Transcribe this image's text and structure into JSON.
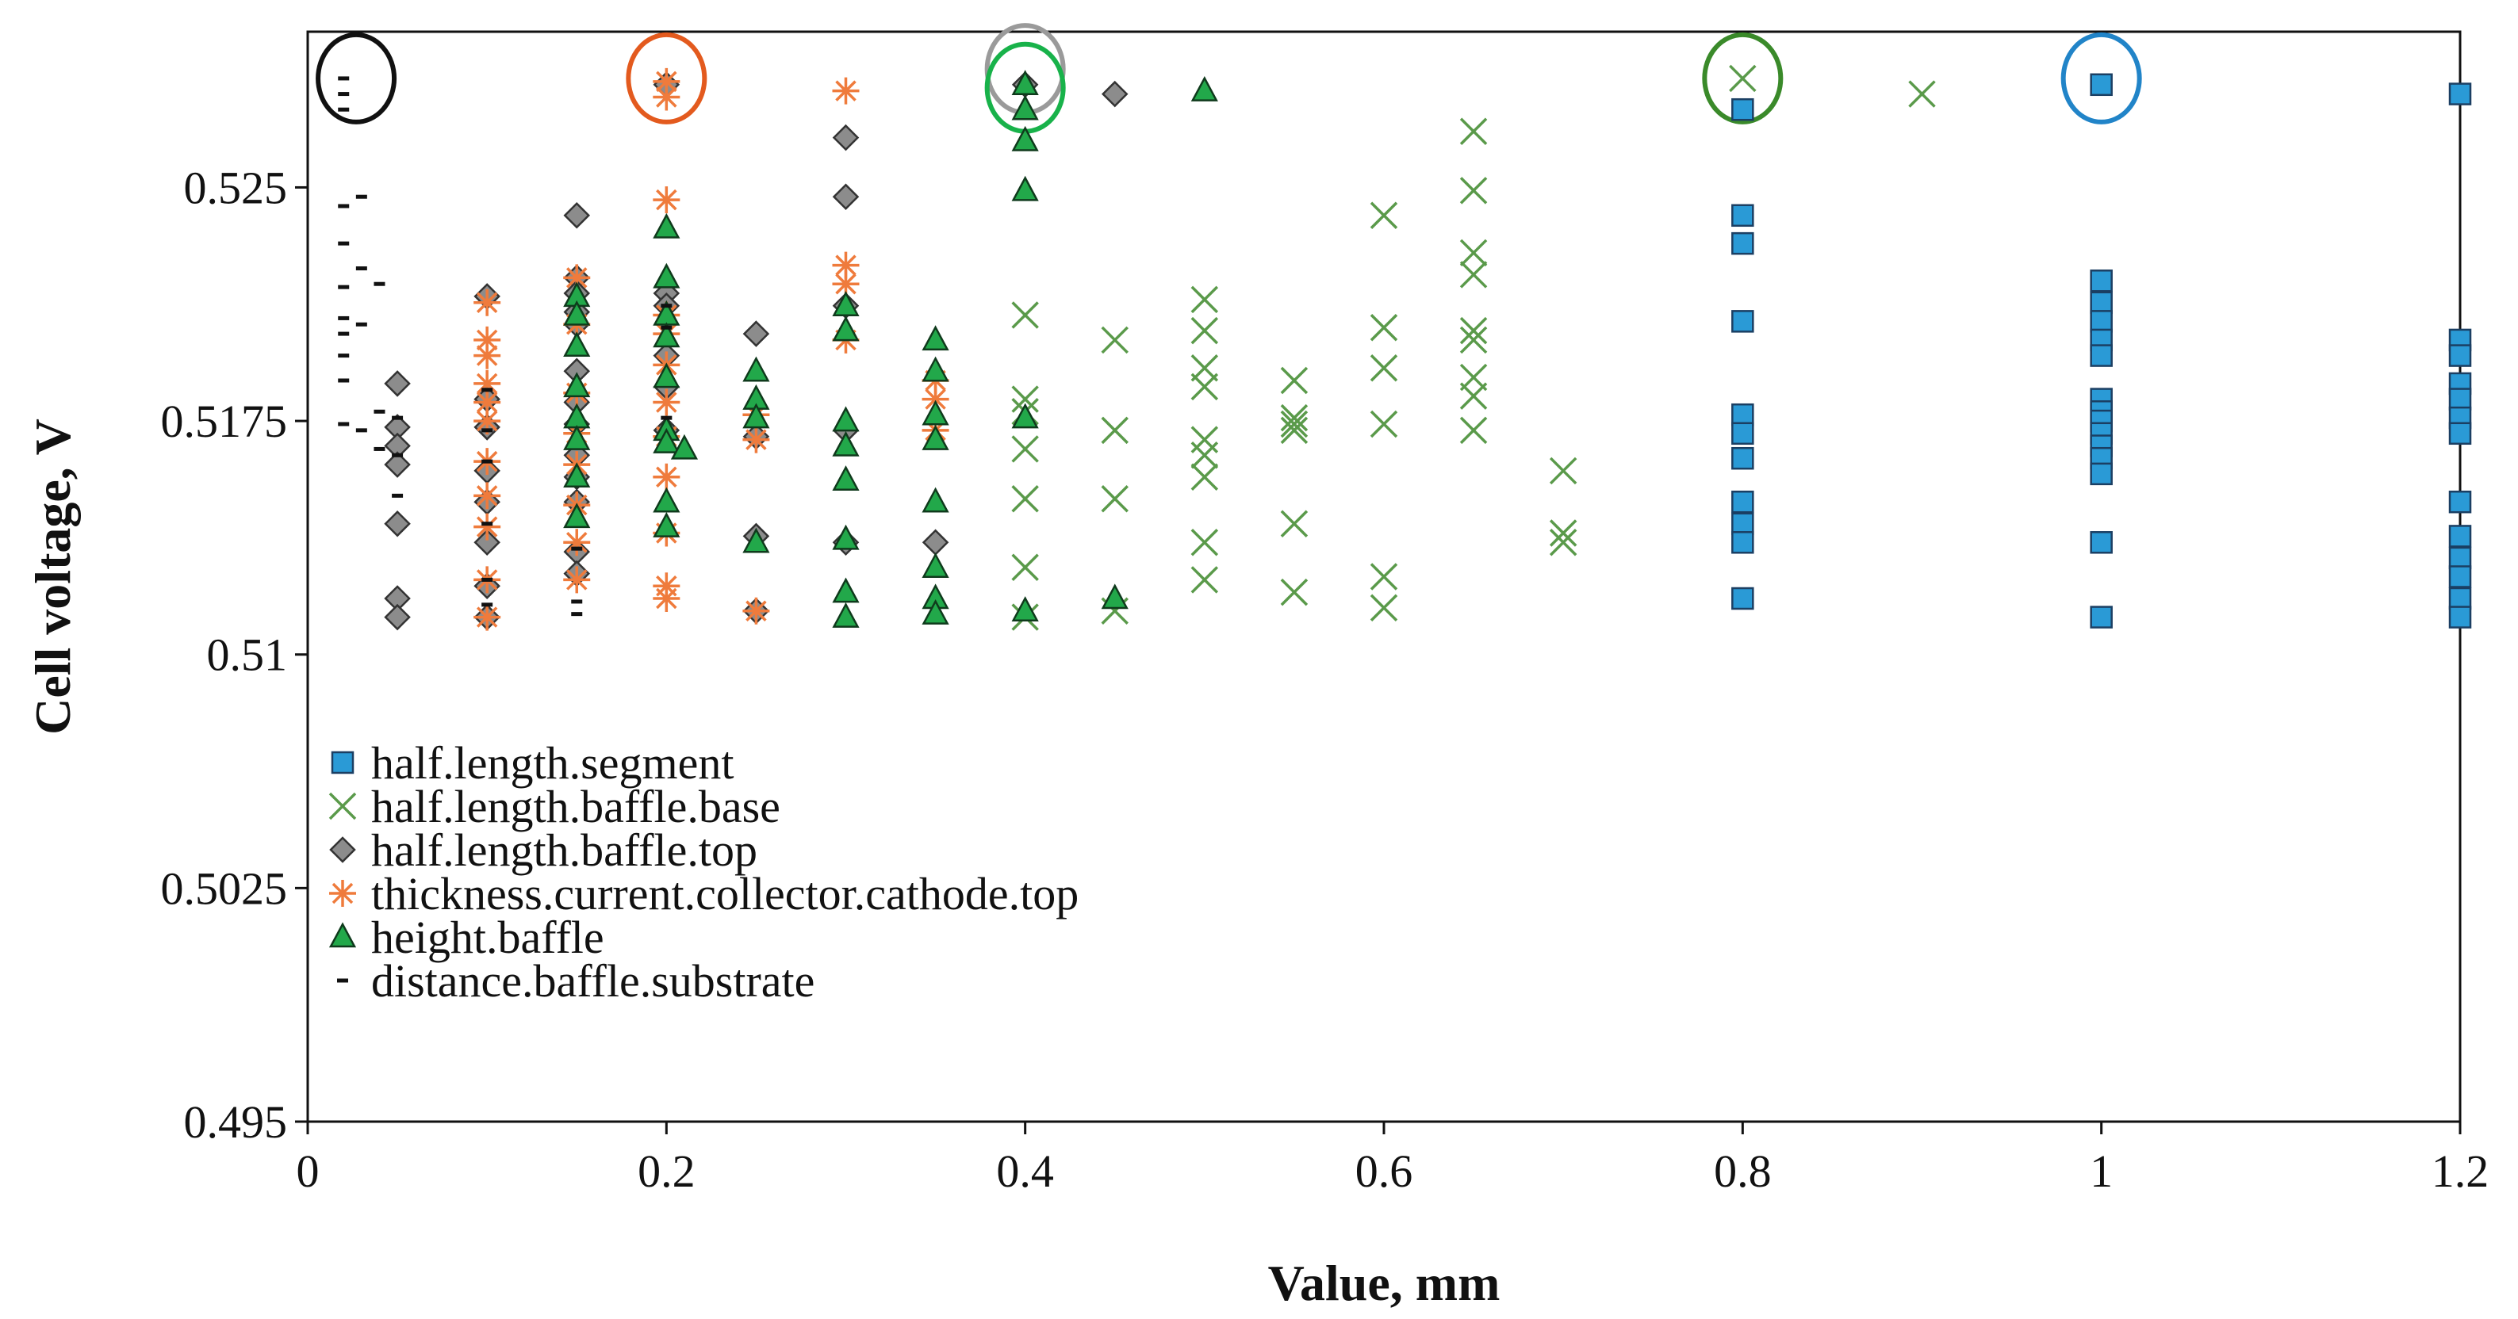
{
  "chart_data": {
    "type": "scatter",
    "title": "",
    "xlabel": "Value, mm",
    "ylabel": "Cell voltage, V",
    "xlim": [
      0,
      1.2
    ],
    "ylim": [
      0.495,
      0.53
    ],
    "xticks": [
      0,
      0.2,
      0.4,
      0.6,
      0.8,
      1,
      1.2
    ],
    "xtick_labels": [
      "0",
      "0.2",
      "0.4",
      "0.6",
      "0.8",
      "1",
      "1.2"
    ],
    "yticks": [
      0.495,
      0.5025,
      0.51,
      0.5175,
      0.525
    ],
    "ytick_labels": [
      "0.495",
      "0.5025",
      "0.51",
      "0.5175",
      "0.525"
    ],
    "grid": false,
    "legend_position": "bottom-left",
    "series": [
      {
        "name": "half.length.segment",
        "marker": "square",
        "color": "#2a9ad6",
        "points": [
          [
            0.8,
            0.5275
          ],
          [
            0.8,
            0.5241
          ],
          [
            0.8,
            0.5232
          ],
          [
            0.8,
            0.5207
          ],
          [
            0.8,
            0.5177
          ],
          [
            0.8,
            0.5171
          ],
          [
            0.8,
            0.5163
          ],
          [
            0.8,
            0.5149
          ],
          [
            0.8,
            0.5142
          ],
          [
            0.8,
            0.5136
          ],
          [
            0.8,
            0.5118
          ],
          [
            1,
            0.5283
          ],
          [
            1,
            0.522
          ],
          [
            1,
            0.5213
          ],
          [
            1,
            0.5207
          ],
          [
            1,
            0.5201
          ],
          [
            1,
            0.5196
          ],
          [
            1,
            0.5182
          ],
          [
            1,
            0.5178
          ],
          [
            1,
            0.5175
          ],
          [
            1,
            0.5171
          ],
          [
            1,
            0.5167
          ],
          [
            1,
            0.5163
          ],
          [
            1,
            0.5158
          ],
          [
            1,
            0.5136
          ],
          [
            1,
            0.5112
          ],
          [
            1.2,
            0.528
          ],
          [
            1.2,
            0.5201
          ],
          [
            1.2,
            0.5196
          ],
          [
            1.2,
            0.5187
          ],
          [
            1.2,
            0.5182
          ],
          [
            1.2,
            0.5176
          ],
          [
            1.2,
            0.5171
          ],
          [
            1.2,
            0.5149
          ],
          [
            1.2,
            0.5138
          ],
          [
            1.2,
            0.5131
          ],
          [
            1.2,
            0.5125
          ],
          [
            1.2,
            0.5118
          ],
          [
            1.2,
            0.5112
          ]
        ]
      },
      {
        "name": "half.length.baffle.base",
        "marker": "x",
        "color": "#5a9a4a",
        "points": [
          [
            0.4,
            0.5209
          ],
          [
            0.4,
            0.5182
          ],
          [
            0.4,
            0.5178
          ],
          [
            0.4,
            0.5166
          ],
          [
            0.4,
            0.515
          ],
          [
            0.4,
            0.5128
          ],
          [
            0.4,
            0.5112
          ],
          [
            0.45,
            0.5201
          ],
          [
            0.45,
            0.5172
          ],
          [
            0.45,
            0.515
          ],
          [
            0.45,
            0.5114
          ],
          [
            0.5,
            0.5214
          ],
          [
            0.5,
            0.5204
          ],
          [
            0.5,
            0.5192
          ],
          [
            0.5,
            0.5186
          ],
          [
            0.5,
            0.5169
          ],
          [
            0.5,
            0.5164
          ],
          [
            0.5,
            0.5157
          ],
          [
            0.5,
            0.5136
          ],
          [
            0.5,
            0.5124
          ],
          [
            0.55,
            0.5188
          ],
          [
            0.55,
            0.5176
          ],
          [
            0.55,
            0.5174
          ],
          [
            0.55,
            0.5172
          ],
          [
            0.55,
            0.5142
          ],
          [
            0.55,
            0.512
          ],
          [
            0.6,
            0.5241
          ],
          [
            0.6,
            0.5205
          ],
          [
            0.6,
            0.5192
          ],
          [
            0.6,
            0.5174
          ],
          [
            0.6,
            0.5125
          ],
          [
            0.6,
            0.5115
          ],
          [
            0.65,
            0.5268
          ],
          [
            0.65,
            0.5249
          ],
          [
            0.65,
            0.5229
          ],
          [
            0.65,
            0.5222
          ],
          [
            0.65,
            0.5204
          ],
          [
            0.65,
            0.5201
          ],
          [
            0.65,
            0.5189
          ],
          [
            0.65,
            0.5183
          ],
          [
            0.65,
            0.5172
          ],
          [
            0.7,
            0.5159
          ],
          [
            0.7,
            0.5139
          ],
          [
            0.7,
            0.5136
          ],
          [
            0.8,
            0.5285
          ],
          [
            0.9,
            0.528
          ]
        ]
      },
      {
        "name": "half.length.baffle.top",
        "marker": "diamond",
        "color": "#8c8c8c",
        "points": [
          [
            0.05,
            0.5187
          ],
          [
            0.05,
            0.5173
          ],
          [
            0.05,
            0.5167
          ],
          [
            0.05,
            0.5161
          ],
          [
            0.05,
            0.5142
          ],
          [
            0.05,
            0.5118
          ],
          [
            0.05,
            0.5112
          ],
          [
            0.1,
            0.5215
          ],
          [
            0.1,
            0.5182
          ],
          [
            0.1,
            0.5173
          ],
          [
            0.1,
            0.5159
          ],
          [
            0.1,
            0.5149
          ],
          [
            0.1,
            0.5136
          ],
          [
            0.1,
            0.5122
          ],
          [
            0.1,
            0.5112
          ],
          [
            0.15,
            0.5241
          ],
          [
            0.15,
            0.5221
          ],
          [
            0.15,
            0.5216
          ],
          [
            0.15,
            0.521
          ],
          [
            0.15,
            0.5206
          ],
          [
            0.15,
            0.5191
          ],
          [
            0.15,
            0.5181
          ],
          [
            0.15,
            0.5174
          ],
          [
            0.15,
            0.5164
          ],
          [
            0.15,
            0.5157
          ],
          [
            0.15,
            0.5149
          ],
          [
            0.15,
            0.5133
          ],
          [
            0.15,
            0.5126
          ],
          [
            0.2,
            0.5283
          ],
          [
            0.2,
            0.5216
          ],
          [
            0.2,
            0.5212
          ],
          [
            0.2,
            0.5196
          ],
          [
            0.2,
            0.5186
          ],
          [
            0.2,
            0.5172
          ],
          [
            0.25,
            0.5203
          ],
          [
            0.25,
            0.517
          ],
          [
            0.25,
            0.5138
          ],
          [
            0.25,
            0.5114
          ],
          [
            0.3,
            0.5266
          ],
          [
            0.3,
            0.5247
          ],
          [
            0.3,
            0.5212
          ],
          [
            0.3,
            0.5172
          ],
          [
            0.3,
            0.5136
          ],
          [
            0.35,
            0.5136
          ],
          [
            0.4,
            0.5283
          ],
          [
            0.45,
            0.528
          ]
        ]
      },
      {
        "name": "thickness.current.collector.cathode.top",
        "marker": "asterisk",
        "color": "#ef7b3c",
        "points": [
          [
            0.1,
            0.5213
          ],
          [
            0.1,
            0.5201
          ],
          [
            0.1,
            0.5196
          ],
          [
            0.1,
            0.5187
          ],
          [
            0.1,
            0.5181
          ],
          [
            0.1,
            0.5175
          ],
          [
            0.1,
            0.5162
          ],
          [
            0.1,
            0.5151
          ],
          [
            0.1,
            0.5141
          ],
          [
            0.1,
            0.5124
          ],
          [
            0.1,
            0.5112
          ],
          [
            0.15,
            0.5221
          ],
          [
            0.15,
            0.5206
          ],
          [
            0.15,
            0.5184
          ],
          [
            0.15,
            0.5171
          ],
          [
            0.15,
            0.5161
          ],
          [
            0.15,
            0.5148
          ],
          [
            0.15,
            0.5136
          ],
          [
            0.15,
            0.5124
          ],
          [
            0.2,
            0.5284
          ],
          [
            0.2,
            0.5279
          ],
          [
            0.2,
            0.5246
          ],
          [
            0.2,
            0.5209
          ],
          [
            0.2,
            0.5203
          ],
          [
            0.2,
            0.5193
          ],
          [
            0.2,
            0.5181
          ],
          [
            0.2,
            0.517
          ],
          [
            0.2,
            0.5157
          ],
          [
            0.2,
            0.5139
          ],
          [
            0.2,
            0.5122
          ],
          [
            0.2,
            0.5118
          ],
          [
            0.25,
            0.5177
          ],
          [
            0.25,
            0.5169
          ],
          [
            0.25,
            0.5114
          ],
          [
            0.3,
            0.5281
          ],
          [
            0.3,
            0.5225
          ],
          [
            0.3,
            0.5219
          ],
          [
            0.3,
            0.5201
          ],
          [
            0.35,
            0.5188
          ],
          [
            0.35,
            0.5182
          ],
          [
            0.35,
            0.5172
          ]
        ]
      },
      {
        "name": "height.baffle",
        "marker": "triangle",
        "color": "#22a84a",
        "points": [
          [
            0.15,
            0.5215
          ],
          [
            0.15,
            0.5209
          ],
          [
            0.15,
            0.5199
          ],
          [
            0.15,
            0.5186
          ],
          [
            0.15,
            0.5176
          ],
          [
            0.15,
            0.5169
          ],
          [
            0.15,
            0.5157
          ],
          [
            0.15,
            0.5144
          ],
          [
            0.2,
            0.5237
          ],
          [
            0.2,
            0.5221
          ],
          [
            0.2,
            0.5209
          ],
          [
            0.2,
            0.5202
          ],
          [
            0.2,
            0.5189
          ],
          [
            0.2,
            0.5172
          ],
          [
            0.2,
            0.5168
          ],
          [
            0.2,
            0.5149
          ],
          [
            0.2,
            0.5141
          ],
          [
            0.21,
            0.5166
          ],
          [
            0.25,
            0.5191
          ],
          [
            0.25,
            0.5182
          ],
          [
            0.25,
            0.5176
          ],
          [
            0.25,
            0.5136
          ],
          [
            0.3,
            0.5212
          ],
          [
            0.3,
            0.5204
          ],
          [
            0.3,
            0.5175
          ],
          [
            0.3,
            0.5167
          ],
          [
            0.3,
            0.5156
          ],
          [
            0.3,
            0.5137
          ],
          [
            0.3,
            0.512
          ],
          [
            0.3,
            0.5112
          ],
          [
            0.35,
            0.5201
          ],
          [
            0.35,
            0.5191
          ],
          [
            0.35,
            0.5177
          ],
          [
            0.35,
            0.5169
          ],
          [
            0.35,
            0.5149
          ],
          [
            0.35,
            0.5128
          ],
          [
            0.35,
            0.5118
          ],
          [
            0.35,
            0.5113
          ],
          [
            0.4,
            0.5283
          ],
          [
            0.4,
            0.5275
          ],
          [
            0.4,
            0.5265
          ],
          [
            0.4,
            0.5249
          ],
          [
            0.4,
            0.5176
          ],
          [
            0.4,
            0.5114
          ],
          [
            0.45,
            0.5118
          ],
          [
            0.5,
            0.5281
          ]
        ]
      },
      {
        "name": "distance.baffle.substrate",
        "marker": "dash",
        "color": "#111111",
        "points": [
          [
            0.02,
            0.5285
          ],
          [
            0.02,
            0.528
          ],
          [
            0.02,
            0.5275
          ],
          [
            0.02,
            0.5244
          ],
          [
            0.02,
            0.5232
          ],
          [
            0.02,
            0.5218
          ],
          [
            0.02,
            0.5208
          ],
          [
            0.02,
            0.5203
          ],
          [
            0.02,
            0.5196
          ],
          [
            0.02,
            0.5188
          ],
          [
            0.02,
            0.5174
          ],
          [
            0.03,
            0.5247
          ],
          [
            0.03,
            0.5224
          ],
          [
            0.03,
            0.5206
          ],
          [
            0.03,
            0.5172
          ],
          [
            0.04,
            0.5219
          ],
          [
            0.04,
            0.5178
          ],
          [
            0.04,
            0.5166
          ],
          [
            0.05,
            0.5176
          ],
          [
            0.05,
            0.5164
          ],
          [
            0.05,
            0.5151
          ],
          [
            0.1,
            0.5185
          ],
          [
            0.1,
            0.5172
          ],
          [
            0.1,
            0.5162
          ],
          [
            0.1,
            0.5142
          ],
          [
            0.1,
            0.5124
          ],
          [
            0.1,
            0.5116
          ],
          [
            0.15,
            0.5134
          ],
          [
            0.15,
            0.5117
          ],
          [
            0.15,
            0.5113
          ],
          [
            0.2,
            0.5212
          ],
          [
            0.2,
            0.5205
          ],
          [
            0.2,
            0.5176
          ]
        ]
      }
    ],
    "annotations": [
      {
        "shape": "ellipse",
        "x": 0.027,
        "y": 0.5285,
        "color": "#111111",
        "note": "optimum marker"
      },
      {
        "shape": "ellipse",
        "x": 0.2,
        "y": 0.5285,
        "color": "#e35a1e",
        "note": "optimum marker"
      },
      {
        "shape": "ellipse",
        "x": 0.4,
        "y": 0.5288,
        "color": "#9a9a9a",
        "note": "optimum marker"
      },
      {
        "shape": "ellipse",
        "x": 0.4,
        "y": 0.5282,
        "color": "#18b24a",
        "note": "optimum marker"
      },
      {
        "shape": "ellipse",
        "x": 0.8,
        "y": 0.5285,
        "color": "#3a8a2a",
        "note": "optimum marker"
      },
      {
        "shape": "ellipse",
        "x": 1,
        "y": 0.5285,
        "color": "#2184c8",
        "note": "optimum marker"
      }
    ]
  }
}
